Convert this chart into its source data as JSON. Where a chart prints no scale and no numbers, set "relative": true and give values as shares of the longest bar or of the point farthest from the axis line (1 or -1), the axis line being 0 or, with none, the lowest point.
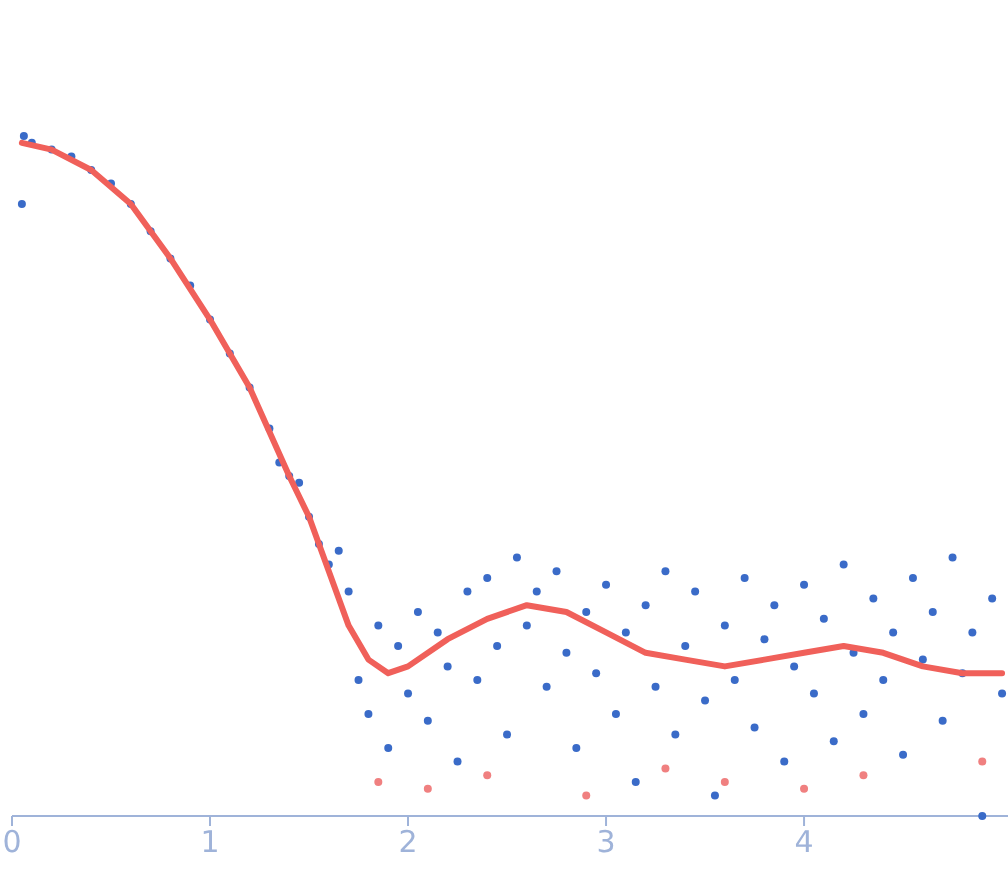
{
  "chart_data": {
    "type": "line",
    "relative": true,
    "xlim": [
      0,
      5.03
    ],
    "xticks": [
      0,
      1,
      2,
      3,
      4
    ],
    "series": [
      {
        "type": "scatter",
        "color": "#3a6bc8",
        "x": [
          0.05,
          0.06,
          0.1,
          0.2,
          0.3,
          0.4,
          0.5,
          0.6,
          0.7,
          0.8,
          0.9,
          1.0,
          1.1,
          1.2,
          1.3,
          1.35,
          1.4,
          1.45,
          1.5,
          1.55,
          1.6,
          1.65,
          1.7,
          1.75,
          1.8,
          1.85,
          1.9,
          1.95,
          2.0,
          2.05,
          2.1,
          2.15,
          2.2,
          2.25,
          2.3,
          2.35,
          2.4,
          2.45,
          2.5,
          2.55,
          2.6,
          2.65,
          2.7,
          2.75,
          2.8,
          2.85,
          2.9,
          2.95,
          3.0,
          3.05,
          3.1,
          3.15,
          3.2,
          3.25,
          3.3,
          3.35,
          3.4,
          3.45,
          3.5,
          3.55,
          3.6,
          3.65,
          3.7,
          3.75,
          3.8,
          3.85,
          3.9,
          3.95,
          4.0,
          4.05,
          4.1,
          4.15,
          4.2,
          4.25,
          4.3,
          4.35,
          4.4,
          4.45,
          4.5,
          4.55,
          4.6,
          4.65,
          4.7,
          4.75,
          4.8,
          4.85,
          4.9,
          4.95,
          5.0
        ],
        "values": [
          0.9,
          1.0,
          0.99,
          0.98,
          0.97,
          0.95,
          0.93,
          0.9,
          0.86,
          0.82,
          0.78,
          0.73,
          0.68,
          0.63,
          0.57,
          0.52,
          0.5,
          0.49,
          0.44,
          0.4,
          0.37,
          0.39,
          0.33,
          0.2,
          0.15,
          0.28,
          0.1,
          0.25,
          0.18,
          0.3,
          0.14,
          0.27,
          0.22,
          0.08,
          0.33,
          0.2,
          0.35,
          0.25,
          0.12,
          0.38,
          0.28,
          0.33,
          0.19,
          0.36,
          0.24,
          0.1,
          0.3,
          0.21,
          0.34,
          0.15,
          0.27,
          0.05,
          0.31,
          0.19,
          0.36,
          0.12,
          0.25,
          0.33,
          0.17,
          0.03,
          0.28,
          0.2,
          0.35,
          0.13,
          0.26,
          0.31,
          0.08,
          0.22,
          0.34,
          0.18,
          0.29,
          0.11,
          0.37,
          0.24,
          0.15,
          0.32,
          0.2,
          0.27,
          0.09,
          0.35,
          0.23,
          0.3,
          0.14,
          0.38,
          0.21,
          0.27,
          0.0,
          0.32,
          0.18
        ]
      },
      {
        "type": "scatter",
        "color": "#f08080",
        "x": [
          1.85,
          2.1,
          2.4,
          2.9,
          3.3,
          3.6,
          4.0,
          4.3,
          4.9
        ],
        "values": [
          0.05,
          0.04,
          0.06,
          0.03,
          0.07,
          0.05,
          0.04,
          0.06,
          0.08
        ]
      },
      {
        "color": "#f0605a",
        "x": [
          0.05,
          0.2,
          0.4,
          0.6,
          0.8,
          1.0,
          1.2,
          1.4,
          1.5,
          1.6,
          1.7,
          1.8,
          1.9,
          2.0,
          2.2,
          2.4,
          2.6,
          2.8,
          3.0,
          3.2,
          3.4,
          3.6,
          3.8,
          4.0,
          4.2,
          4.4,
          4.6,
          4.8,
          5.0
        ],
        "values": [
          0.99,
          0.98,
          0.95,
          0.9,
          0.82,
          0.73,
          0.63,
          0.5,
          0.44,
          0.36,
          0.28,
          0.23,
          0.21,
          0.22,
          0.26,
          0.29,
          0.31,
          0.3,
          0.27,
          0.24,
          0.23,
          0.22,
          0.23,
          0.24,
          0.25,
          0.24,
          0.22,
          0.21,
          0.21
        ]
      }
    ]
  }
}
